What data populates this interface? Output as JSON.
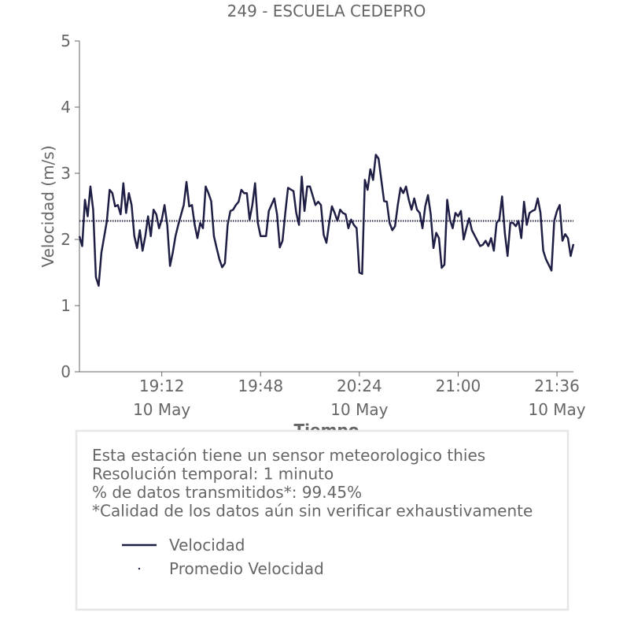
{
  "chart_data": {
    "type": "line",
    "title": "249 - ESCUELA CEDEPRO",
    "ylabel": "Velocidad (m/s)",
    "xlabel": "Tiempo",
    "xlim": [
      "18:42",
      "21:42"
    ],
    "xticks": [
      {
        "value": "19:12",
        "label": "19:12",
        "date": "10 May"
      },
      {
        "value": "19:48",
        "label": "19:48"
      },
      {
        "value": "20:24",
        "label": "20:24",
        "date": "10 May"
      },
      {
        "value": "21:00",
        "label": "21:00"
      },
      {
        "value": "21:36",
        "label": "21:36",
        "date": "10 May"
      }
    ],
    "ylim": [
      0,
      5
    ],
    "yticks": [
      0,
      1,
      2,
      3,
      4,
      5
    ],
    "x": [
      "18:42",
      "18:43",
      "18:44",
      "18:45",
      "18:46",
      "18:47",
      "18:48",
      "18:49",
      "18:50",
      "18:52",
      "18:53",
      "18:54",
      "18:55",
      "18:56",
      "18:57",
      "18:58",
      "18:59",
      "19:00",
      "19:01",
      "19:02",
      "19:03",
      "19:04",
      "19:05",
      "19:06",
      "19:07",
      "19:08",
      "19:09",
      "19:10",
      "19:11",
      "19:12",
      "19:13",
      "19:14",
      "19:15",
      "19:16",
      "19:17",
      "19:18",
      "19:20",
      "19:21",
      "19:22",
      "19:23",
      "19:24",
      "19:25",
      "19:26",
      "19:27",
      "19:28",
      "19:29",
      "19:30",
      "19:31",
      "19:32",
      "19:33",
      "19:34",
      "19:35",
      "19:36",
      "19:37",
      "19:38",
      "19:39",
      "19:40",
      "19:41",
      "19:42",
      "19:43",
      "19:44",
      "19:45",
      "19:46",
      "19:47",
      "19:48",
      "19:49",
      "19:50",
      "19:51",
      "19:53",
      "19:54",
      "19:55",
      "19:56",
      "19:57",
      "19:58",
      "20:00",
      "20:01",
      "20:02",
      "20:03",
      "20:04",
      "20:05",
      "20:06",
      "20:08",
      "20:09",
      "20:10",
      "20:11",
      "20:12",
      "20:13",
      "20:14",
      "20:15",
      "20:16",
      "20:17",
      "20:18",
      "20:19",
      "20:20",
      "20:21",
      "20:22",
      "20:23",
      "20:24",
      "20:25",
      "20:26",
      "20:27",
      "20:28",
      "20:29",
      "20:30",
      "20:31",
      "20:32",
      "20:33",
      "20:34",
      "20:35",
      "20:36",
      "20:37",
      "20:38",
      "20:39",
      "20:40",
      "20:41",
      "20:42",
      "20:43",
      "20:44",
      "20:45",
      "20:46",
      "20:47",
      "20:48",
      "20:49",
      "20:50",
      "20:51",
      "20:52",
      "20:53",
      "20:54",
      "20:55",
      "20:56",
      "20:57",
      "20:58",
      "20:59",
      "21:00",
      "21:01",
      "21:02",
      "21:03",
      "21:04",
      "21:05",
      "21:07",
      "21:08",
      "21:09",
      "21:10",
      "21:11",
      "21:12",
      "21:13",
      "21:14",
      "21:15",
      "21:16",
      "21:17",
      "21:18",
      "21:19",
      "21:20",
      "21:21",
      "21:22",
      "21:23",
      "21:24",
      "21:25",
      "21:26",
      "21:27",
      "21:28",
      "21:29",
      "21:30",
      "21:31",
      "21:32",
      "21:34",
      "21:35",
      "21:36",
      "21:37",
      "21:38",
      "21:39",
      "21:40",
      "21:41",
      "21:42"
    ],
    "series": [
      {
        "name": "Velocidad",
        "color": "#1f1f45",
        "values": [
          2.05,
          1.9,
          2.6,
          2.35,
          2.8,
          2.45,
          1.43,
          1.3,
          1.8,
          2.28,
          2.75,
          2.7,
          2.5,
          2.52,
          2.38,
          2.85,
          2.4,
          2.7,
          2.52,
          2.05,
          1.87,
          2.14,
          1.83,
          2.05,
          2.35,
          2.05,
          2.45,
          2.38,
          2.17,
          2.3,
          2.52,
          2.22,
          1.6,
          1.8,
          2.05,
          2.22,
          2.52,
          2.87,
          2.5,
          2.52,
          2.22,
          2.02,
          2.25,
          2.17,
          2.8,
          2.7,
          2.58,
          2.05,
          1.87,
          1.7,
          1.58,
          1.64,
          2.22,
          2.43,
          2.45,
          2.52,
          2.57,
          2.75,
          2.7,
          2.7,
          2.3,
          2.52,
          2.85,
          2.25,
          2.05,
          2.05,
          2.05,
          2.43,
          2.62,
          2.38,
          1.88,
          1.98,
          2.4,
          2.78,
          2.73,
          2.4,
          2.22,
          2.95,
          2.43,
          2.8,
          2.8,
          2.52,
          2.57,
          2.52,
          2.07,
          1.95,
          2.25,
          2.5,
          2.4,
          2.28,
          2.45,
          2.4,
          2.38,
          2.17,
          2.3,
          2.22,
          2.17,
          1.5,
          1.48,
          2.9,
          2.75,
          3.06,
          2.9,
          3.28,
          3.22,
          2.9,
          2.58,
          2.57,
          2.25,
          2.14,
          2.2,
          2.52,
          2.78,
          2.7,
          2.8,
          2.6,
          2.45,
          2.62,
          2.45,
          2.4,
          2.17,
          2.5,
          2.67,
          2.38,
          1.87,
          2.1,
          2.02,
          1.57,
          1.62,
          2.6,
          2.3,
          2.17,
          2.4,
          2.35,
          2.43,
          2.0,
          2.17,
          2.32,
          2.14,
          1.98,
          1.9,
          1.92,
          1.98,
          1.9,
          2.02,
          1.83,
          2.25,
          2.3,
          2.65,
          2.1,
          1.75,
          2.25,
          2.25,
          2.2,
          2.28,
          2.02,
          2.57,
          2.22,
          2.4,
          2.43,
          2.45,
          2.62,
          2.4,
          1.83,
          1.7,
          1.53,
          2.28,
          2.43,
          2.52,
          1.98,
          2.08,
          2.02,
          1.75,
          1.93
        ]
      },
      {
        "name": "Promedio Velocidad",
        "color": "#1f1f45",
        "value": 2.28
      }
    ],
    "info": [
      "Esta estación tiene un sensor meteorologico thies",
      "Resolución temporal: 1 minuto",
      "% de datos transmitidos*: 99.45%",
      "*Calidad de los datos aún sin verificar exhaustivamente"
    ]
  }
}
